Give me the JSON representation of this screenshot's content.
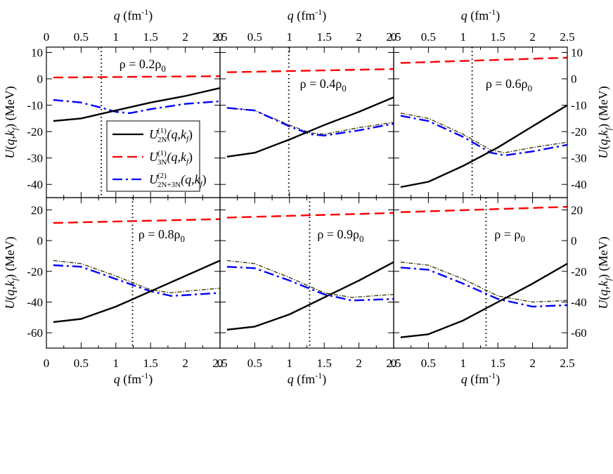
{
  "chart_data": {
    "type": "line",
    "layout": "2x3 panel grid",
    "xlabel": "q (fm⁻¹)",
    "ylabel": "U(q,k_f) (MeV)",
    "xlim": [
      0,
      2.5
    ],
    "xticks": [
      0,
      0.5,
      1,
      1.5,
      2,
      2.5
    ],
    "xtick_labels": [
      "0",
      "0.5",
      "1",
      "1.5",
      "2",
      "2.5"
    ],
    "rows": [
      {
        "ylim": [
          -45,
          12
        ],
        "yticks": [
          10,
          0,
          -10,
          -20,
          -30,
          -40
        ]
      },
      {
        "ylim": [
          -70,
          28
        ],
        "yticks": [
          20,
          0,
          -20,
          -40,
          -60
        ]
      }
    ],
    "legend": {
      "placement": "top-left panel, lower-middle",
      "entries": [
        {
          "key": "u1_2n",
          "text": "U",
          "sup": "(1)",
          "sub": "2N",
          "tail": "(q,k",
          "tail_sub": "f",
          "end": ")"
        },
        {
          "key": "u1_3n",
          "text": "U",
          "sup": "(1)",
          "sub": "3N",
          "tail": "(q,k",
          "tail_sub": "f",
          "end": ")"
        },
        {
          "key": "u2_tot",
          "text": "U",
          "sup": "(2)",
          "sub": "2N+3N",
          "tail": "(q,k",
          "tail_sub": "f",
          "end": ")"
        }
      ]
    },
    "series_styles": {
      "u1_2n": {
        "color": "#000000",
        "dash": ""
      },
      "u1_3n": {
        "color": "#ff0000",
        "dash": "14,7"
      },
      "u2_tot": {
        "color": "#0000ff",
        "dash": "14,5,3,5"
      },
      "extra": {
        "color": "#333300",
        "dash": "6,2,1.5,2"
      }
    },
    "panels": [
      {
        "label": "ρ = 0.2ρ",
        "label_sub": "0",
        "kf": 0.79,
        "series": {
          "u1_2n": {
            "x": [
              0.1,
              0.5,
              1.0,
              1.5,
              2.0,
              2.5
            ],
            "y": [
              -16,
              -15,
              -12,
              -9,
              -6.5,
              -3.5
            ]
          },
          "u1_3n": {
            "x": [
              0.1,
              2.5
            ],
            "y": [
              0.5,
              1.0
            ]
          },
          "u2_tot": {
            "x": [
              0.1,
              0.5,
              0.8,
              1.0,
              1.2,
              1.5,
              2.0,
              2.5
            ],
            "y": [
              -8,
              -9,
              -11,
              -12.5,
              -13,
              -11.5,
              -9.5,
              -8.5
            ]
          }
        }
      },
      {
        "label": "ρ = 0.4ρ",
        "label_sub": "0",
        "kf": 0.99,
        "series": {
          "u1_2n": {
            "x": [
              0.1,
              0.5,
              1.0,
              1.5,
              2.0,
              2.5
            ],
            "y": [
              -29.5,
              -28,
              -23,
              -17.5,
              -12.5,
              -7
            ]
          },
          "u1_3n": {
            "x": [
              0.1,
              2.5
            ],
            "y": [
              2.5,
              3.7
            ]
          },
          "u2_tot": {
            "x": [
              0.1,
              0.5,
              1.0,
              1.3,
              1.5,
              2.0,
              2.5
            ],
            "y": [
              -11,
              -12,
              -18,
              -21,
              -21.5,
              -19.5,
              -17
            ]
          },
          "extra": {
            "x": [
              0.1,
              0.5,
              1.0,
              1.3,
              1.5,
              2.0,
              2.5
            ],
            "y": [
              -11,
              -12,
              -17.5,
              -20.5,
              -21,
              -18.5,
              -16.5
            ]
          }
        }
      },
      {
        "label": "ρ = 0.6ρ",
        "label_sub": "0",
        "kf": 1.13,
        "series": {
          "u1_2n": {
            "x": [
              0.1,
              0.5,
              1.0,
              1.5,
              2.0,
              2.5
            ],
            "y": [
              -41,
              -39,
              -33,
              -26,
              -18,
              -10
            ]
          },
          "u1_3n": {
            "x": [
              0.1,
              2.5
            ],
            "y": [
              6,
              8
            ]
          },
          "u2_tot": {
            "x": [
              0.1,
              0.5,
              1.0,
              1.4,
              1.6,
              2.0,
              2.5
            ],
            "y": [
              -14,
              -16,
              -22,
              -28,
              -29,
              -27.5,
              -25
            ]
          },
          "extra": {
            "x": [
              0.1,
              0.5,
              1.0,
              1.4,
              1.6,
              2.0,
              2.5
            ],
            "y": [
              -13,
              -15,
              -21,
              -27,
              -28,
              -26,
              -24
            ]
          }
        }
      },
      {
        "label": "ρ = 0.8ρ",
        "label_sub": "0",
        "kf": 1.24,
        "series": {
          "u1_2n": {
            "x": [
              0.1,
              0.5,
              1.0,
              1.5,
              2.0,
              2.5
            ],
            "y": [
              -53,
              -51,
              -43,
              -33,
              -23,
              -13
            ]
          },
          "u1_3n": {
            "x": [
              0.1,
              2.5
            ],
            "y": [
              11.5,
              14
            ]
          },
          "u2_tot": {
            "x": [
              0.1,
              0.5,
              1.0,
              1.5,
              1.8,
              2.0,
              2.5
            ],
            "y": [
              -16,
              -17,
              -25,
              -33,
              -36,
              -35.5,
              -34
            ]
          },
          "extra": {
            "x": [
              0.1,
              0.5,
              1.0,
              1.5,
              1.8,
              2.0,
              2.5
            ],
            "y": [
              -13,
              -15,
              -23,
              -32,
              -34,
              -33,
              -31
            ]
          }
        }
      },
      {
        "label": "ρ = 0.9ρ",
        "label_sub": "0",
        "kf": 1.29,
        "series": {
          "u1_2n": {
            "x": [
              0.1,
              0.5,
              1.0,
              1.5,
              2.0,
              2.5
            ],
            "y": [
              -58,
              -56,
              -48,
              -37,
              -26,
              -14
            ]
          },
          "u1_3n": {
            "x": [
              0.1,
              2.5
            ],
            "y": [
              15,
              18
            ]
          },
          "u2_tot": {
            "x": [
              0.1,
              0.5,
              1.0,
              1.5,
              1.9,
              2.5
            ],
            "y": [
              -17,
              -18,
              -26,
              -35,
              -39,
              -38
            ]
          },
          "extra": {
            "x": [
              0.1,
              0.5,
              1.0,
              1.5,
              1.9,
              2.5
            ],
            "y": [
              -13,
              -15,
              -24,
              -34,
              -37,
              -35
            ]
          }
        }
      },
      {
        "label": "ρ = ρ",
        "label_sub": "0",
        "kf": 1.33,
        "series": {
          "u1_2n": {
            "x": [
              0.1,
              0.5,
              1.0,
              1.5,
              2.0,
              2.5
            ],
            "y": [
              -63,
              -61,
              -52,
              -40,
              -28,
              -15
            ]
          },
          "u1_3n": {
            "x": [
              0.1,
              2.5
            ],
            "y": [
              18.5,
              22
            ]
          },
          "u2_tot": {
            "x": [
              0.1,
              0.5,
              1.0,
              1.5,
              2.0,
              2.5
            ],
            "y": [
              -17.5,
              -19,
              -28,
              -38,
              -43,
              -42
            ]
          },
          "extra": {
            "x": [
              0.1,
              0.5,
              1.0,
              1.5,
              2.0,
              2.5
            ],
            "y": [
              -14,
              -16,
              -25,
              -36,
              -40,
              -39
            ]
          }
        }
      }
    ]
  }
}
